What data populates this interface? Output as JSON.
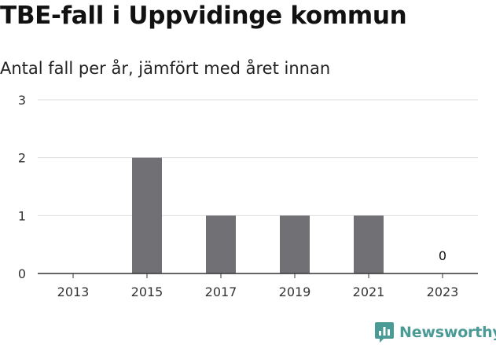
{
  "chart_data": {
    "type": "bar",
    "title": "TBE-fall i Uppvidinge kommun",
    "subtitle": "Antal fall per år, jämfört med året innan",
    "categories": [
      "2013",
      "2015",
      "2017",
      "2019",
      "2021",
      "2023"
    ],
    "values": [
      0,
      2,
      1,
      1,
      1,
      0
    ],
    "data_labels": [
      "",
      "",
      "",
      "",
      "",
      "0"
    ],
    "ylim": [
      0,
      3
    ],
    "yticks": [
      "0",
      "1",
      "2",
      "3"
    ],
    "xlabel": "",
    "ylabel": "",
    "grid": true,
    "bar_color": "#717075",
    "grid_color": "#dddddd",
    "axis_color": "#333333"
  },
  "branding": {
    "logo_text": "Newsworthy",
    "logo_icon": "newsworthy-chart-icon",
    "logo_color": "#4a9a95"
  }
}
